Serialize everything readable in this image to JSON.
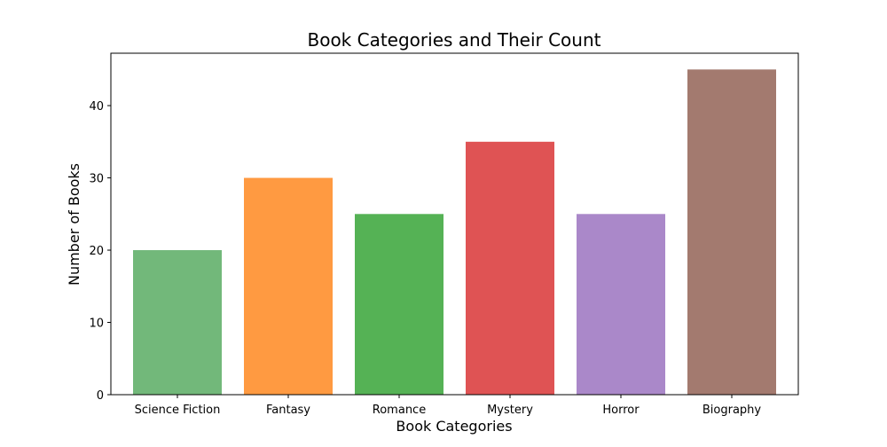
{
  "chart_data": {
    "type": "bar",
    "title": "Book Categories and Their Count",
    "xlabel": "Book Categories",
    "ylabel": "Number of Books",
    "categories": [
      "Science Fiction",
      "Fantasy",
      "Romance",
      "Mystery",
      "Horror",
      "Biography"
    ],
    "values": [
      20,
      30,
      25,
      35,
      25,
      45
    ],
    "colors": [
      "#72b87a",
      "#ff9a41",
      "#55b255",
      "#df5354",
      "#aa88c9",
      "#a37a6f"
    ],
    "ylim": [
      0,
      47.25
    ],
    "yticks": [
      0,
      10,
      20,
      30,
      40
    ],
    "ytick_labels": [
      "0",
      "10",
      "20",
      "30",
      "40"
    ],
    "grid": false,
    "legend": "none"
  }
}
